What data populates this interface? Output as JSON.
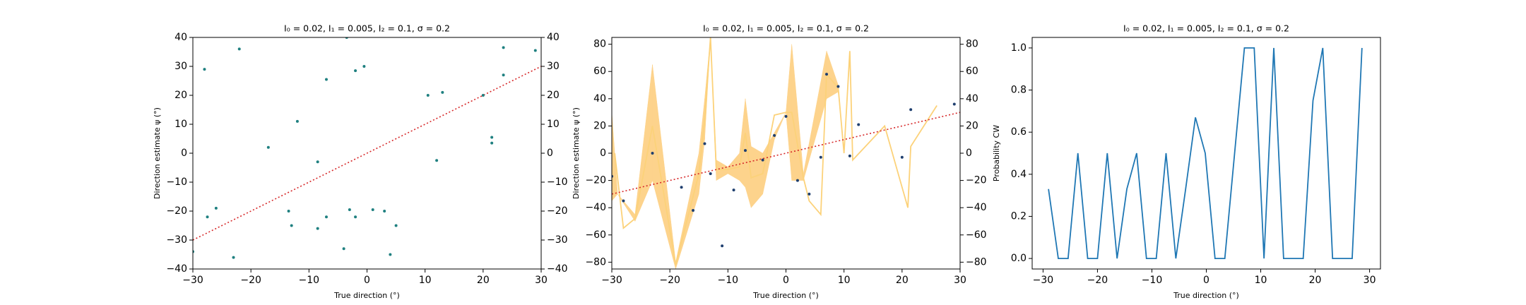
{
  "chart_data": [
    {
      "type": "scatter",
      "title": "I₀ = 0.02, I₁ = 0.005, I₂ = 0.1, σ = 0.2",
      "xlabel": "True direction (°)",
      "ylabel": "Direction estimate ψ (°)",
      "xlim": [
        -30,
        30
      ],
      "ylim": [
        -40,
        40
      ],
      "y2lim": [
        -40,
        40
      ],
      "xticks": [
        {
          "value": -30,
          "label": "−30"
        },
        {
          "value": -20,
          "label": "−20"
        },
        {
          "value": -10,
          "label": "−10"
        },
        0,
        10,
        20,
        30
      ],
      "yticks": [
        {
          "value": -40,
          "label": "−40"
        },
        {
          "value": -30,
          "label": "−30"
        },
        {
          "value": -20,
          "label": "−20"
        },
        {
          "value": -10,
          "label": "−10"
        },
        0,
        10,
        20,
        30,
        40
      ],
      "y2ticks": [
        {
          "value": -40,
          "label": "−40"
        },
        {
          "value": -30,
          "label": "−30"
        },
        {
          "value": -20,
          "label": "−20"
        },
        {
          "value": -10,
          "label": "−10"
        },
        0,
        10,
        20,
        30,
        40
      ],
      "series": [
        {
          "kind": "dotted",
          "color": "#d62728",
          "x": [
            -30,
            30
          ],
          "values": [
            -30,
            30
          ]
        },
        {
          "kind": "scatter",
          "color": "#1f8080",
          "x": [
            -30,
            -28,
            -27.5,
            -26,
            -23,
            -22,
            -17,
            -13.5,
            -13,
            -12,
            -8.5,
            -8.5,
            -7,
            -7,
            -4,
            -3.5,
            -3,
            -2,
            -2,
            -0.5,
            1,
            3,
            4,
            5,
            10.5,
            12,
            13,
            20,
            21.5,
            21.5,
            23.5,
            23.5,
            29
          ],
          "values": [
            -34,
            29,
            -22,
            -19,
            -36,
            36,
            2,
            -20,
            -25,
            11,
            -3,
            -26,
            25.5,
            -22,
            -33,
            40,
            -19.5,
            -22,
            28.5,
            30,
            -19.5,
            -20,
            -35,
            -25,
            20,
            -2.5,
            21,
            20,
            5.5,
            3.5,
            27,
            36.5,
            35.5
          ]
        }
      ]
    },
    {
      "type": "scatter",
      "title": "I₀ = 0.02, I₁ = 0.005, I₂ = 0.1, σ = 0.2",
      "xlabel": "True direction (°)",
      "ylabel": "Direction estimate ψ (°)",
      "xlim": [
        -30,
        30
      ],
      "ylim": [
        -85,
        85
      ],
      "y2lim": [
        -85,
        85
      ],
      "xticks": [
        {
          "value": -30,
          "label": "−30"
        },
        {
          "value": -20,
          "label": "−20"
        },
        {
          "value": -10,
          "label": "−10"
        },
        0,
        10,
        20,
        30
      ],
      "yticks": [
        {
          "value": -80,
          "label": "−80"
        },
        {
          "value": -60,
          "label": "−60"
        },
        {
          "value": -40,
          "label": "−40"
        },
        {
          "value": -20,
          "label": "−20"
        },
        0,
        20,
        40,
        60,
        80
      ],
      "y2ticks": [
        {
          "value": -80,
          "label": "−80"
        },
        {
          "value": -60,
          "label": "−60"
        },
        {
          "value": -40,
          "label": "−40"
        },
        {
          "value": -20,
          "label": "−20"
        },
        0,
        20,
        40,
        60,
        80
      ],
      "series": [
        {
          "kind": "fill",
          "color": "#fdd38c",
          "x": [
            -30,
            -29,
            -26,
            -23,
            -19,
            -15,
            -14,
            -13,
            -12,
            -10,
            -8,
            -7,
            -6,
            -4,
            -2,
            0,
            1,
            3,
            7,
            9,
            10
          ],
          "lower": [
            -35,
            -30,
            -50,
            -20,
            -85,
            -30,
            10,
            85,
            -20,
            -15,
            -20,
            -25,
            -40,
            -30,
            10,
            30,
            -20,
            -20,
            40,
            45,
            0
          ],
          "upper": [
            30,
            -30,
            -45,
            65,
            -80,
            0,
            40,
            85,
            -5,
            -10,
            0,
            40,
            5,
            0,
            15,
            30,
            80,
            -15,
            75,
            50,
            0
          ]
        },
        {
          "kind": "line",
          "color": "#fcd27a",
          "x": [
            -29.5,
            -28,
            -26,
            -23,
            -19,
            -15,
            -14,
            -13,
            -12,
            -10,
            -8,
            -7,
            -6,
            -4,
            -2,
            0,
            1,
            3,
            4,
            6,
            7,
            9,
            10,
            11,
            11.5,
            17,
            21,
            21.5,
            26
          ],
          "values": [
            0,
            -55,
            -48,
            20,
            -82,
            -15,
            25,
            85,
            -12,
            -12,
            -10,
            15,
            -18,
            -15,
            28,
            30,
            30,
            -18,
            -35,
            -45,
            58,
            48,
            0,
            75,
            -5,
            20,
            -40,
            5,
            35
          ]
        },
        {
          "kind": "dotted",
          "color": "#d62728",
          "x": [
            -30,
            30
          ],
          "values": [
            -30,
            30
          ]
        },
        {
          "kind": "scatter",
          "color": "#1f3f6f",
          "x": [
            -30,
            -28,
            -23,
            -18,
            -16,
            -14,
            -13,
            -11,
            -9,
            -7,
            -4,
            -2,
            0,
            2,
            4,
            6,
            7,
            9,
            11,
            12.5,
            20,
            21.5,
            29
          ],
          "values": [
            -17,
            -35,
            0,
            -25,
            -42,
            7,
            -15,
            -68,
            -27,
            2,
            -5,
            13,
            27,
            -20,
            -30,
            -3,
            58,
            49,
            -2,
            21,
            -3,
            32,
            36
          ]
        }
      ]
    },
    {
      "type": "line",
      "title": "I₀ = 0.02, I₁ = 0.005, I₂ = 0.1, σ = 0.2",
      "xlabel": "True direction (°)",
      "ylabel": "Probability CW",
      "xlim": [
        -32,
        32
      ],
      "ylim": [
        -0.05,
        1.05
      ],
      "xticks": [
        {
          "value": -30,
          "label": "−30"
        },
        {
          "value": -20,
          "label": "−20"
        },
        {
          "value": -10,
          "label": "−10"
        },
        0,
        10,
        20,
        30
      ],
      "yticks": [
        {
          "value": 0,
          "label": "0.0"
        },
        0.2,
        0.4,
        0.6,
        0.8,
        {
          "value": 1,
          "label": "1.0"
        }
      ],
      "series": [
        {
          "kind": "line",
          "color": "#1f77b4",
          "x": [
            -29,
            -27.2,
            -25.4,
            -23.6,
            -21.8,
            -20,
            -18.2,
            -16.4,
            -14.6,
            -12.8,
            -11,
            -9.2,
            -7.4,
            -5.6,
            -3.8,
            -2,
            -0.2,
            1.6,
            3.4,
            5.2,
            7,
            8.8,
            10.6,
            12.4,
            14.2,
            16,
            17.8,
            19.6,
            21.4,
            23.2,
            25,
            26.8,
            28.6
          ],
          "values": [
            0.33,
            0,
            0,
            0.5,
            0,
            0,
            0.5,
            0,
            0.33,
            0.5,
            0,
            0,
            0.5,
            0,
            0.33,
            0.67,
            0.5,
            0,
            0,
            0.5,
            1,
            1,
            0,
            1,
            0,
            0,
            0,
            0.75,
            1,
            0,
            0,
            0,
            1
          ]
        }
      ]
    }
  ]
}
